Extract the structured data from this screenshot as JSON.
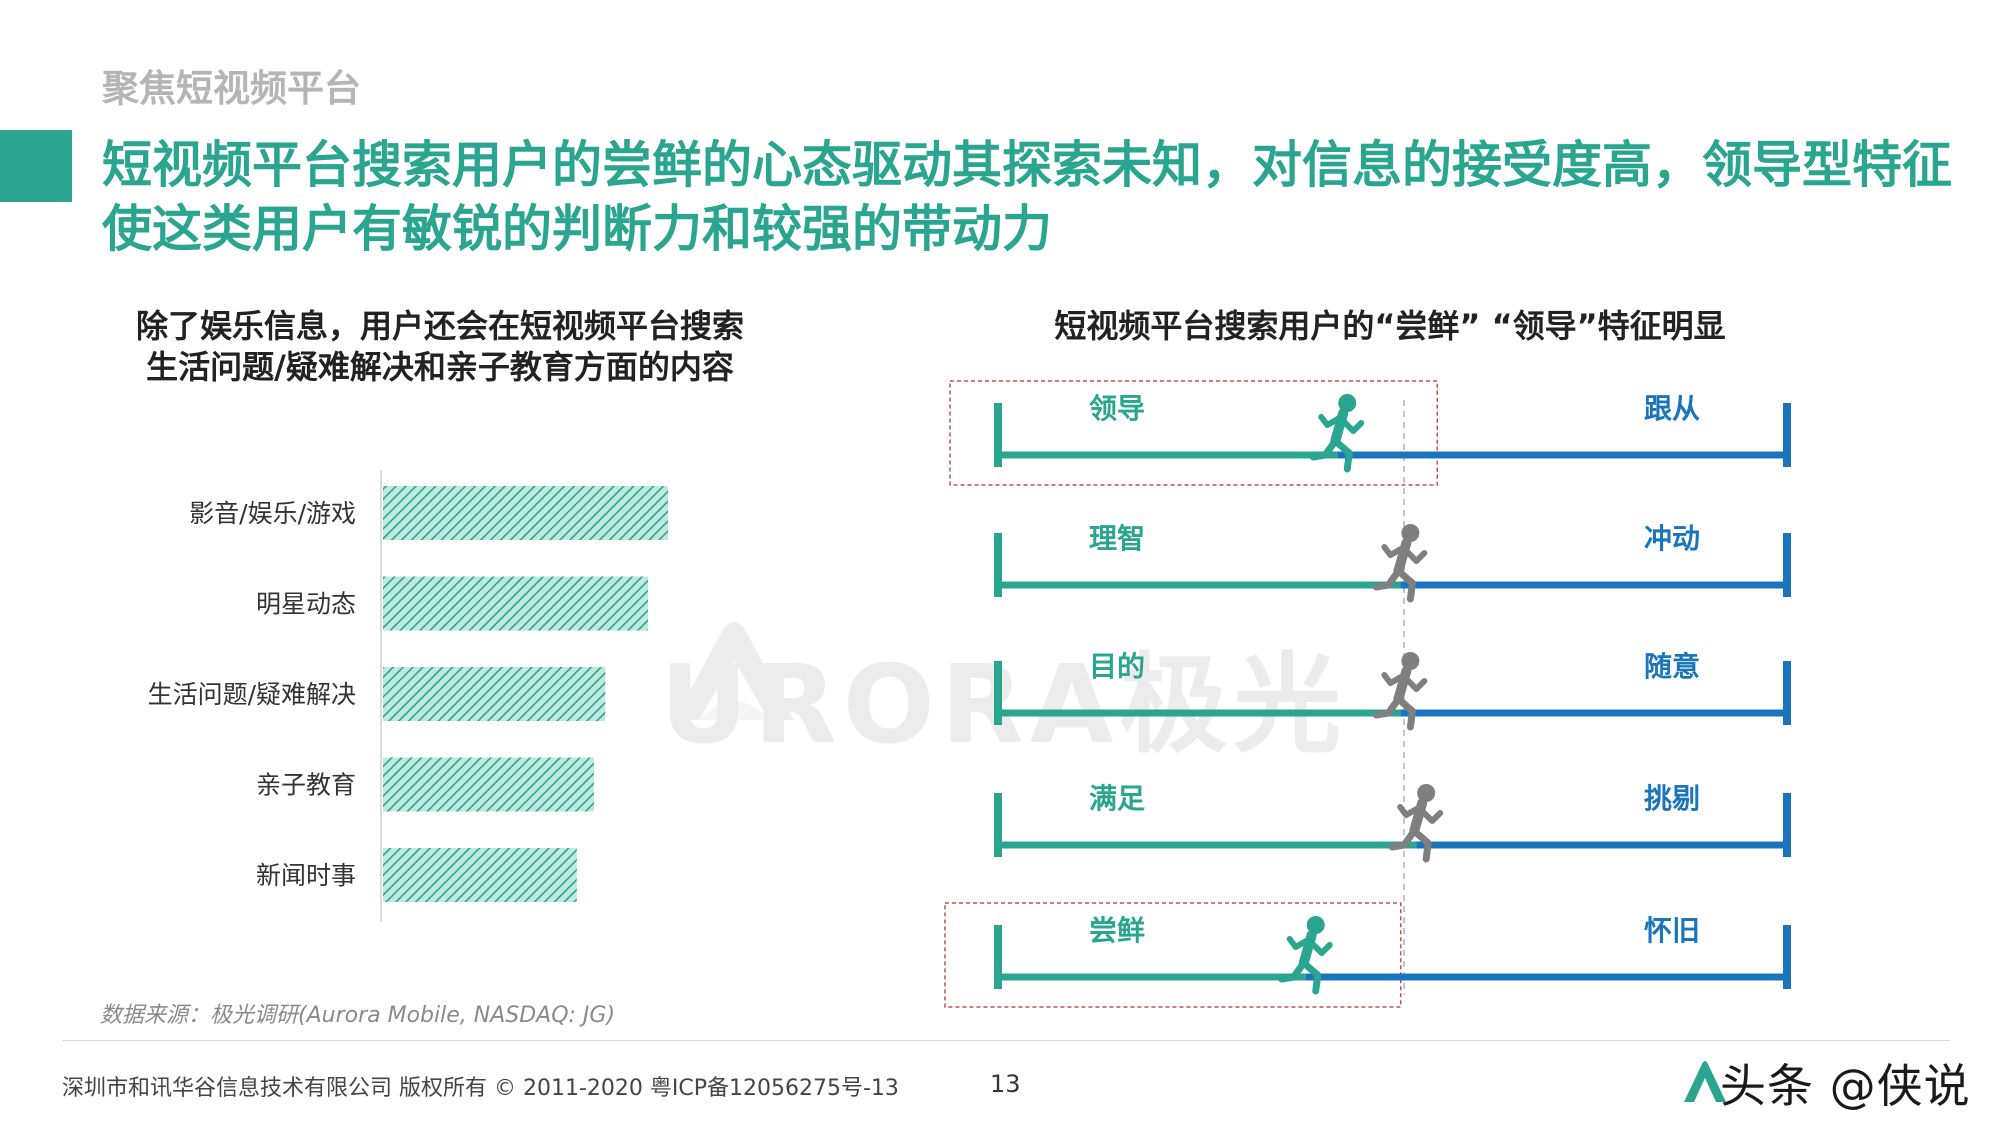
{
  "section_label": "聚焦短视频平台",
  "main_title": "短视频平台搜索用户的尝鲜的心态驱动其探索未知，对信息的接受度高，领导型特征使这类用户有敏锐的判断力和较强的带动力",
  "left_panel": {
    "subtitle_line1": "除了娱乐信息，用户还会在短视频平台搜索",
    "subtitle_line2": "生活问题/疑难解决和亲子教育方面的内容"
  },
  "right_panel": {
    "subtitle": "短视频平台搜索用户的“尝鲜”  “领导”特征明显"
  },
  "watermark": "URORA极光",
  "source_note": "数据来源：极光调研(Aurora Mobile, NASDAQ: JG)",
  "footer": {
    "copyright": "深圳市和讯华谷信息技术有限公司 版权所有 © 2011-2020 粤ICP备12056275号-13",
    "page_number": "13",
    "brand_mark": "头条 @侠说"
  },
  "colors": {
    "accent_green": "#2aa58f",
    "blue": "#1b75bc",
    "bar_hatch_dark": "#2aa58f",
    "bar_hatch_light": "#bfe8df",
    "figure_gray": "#7f7f7f",
    "highlight_border": "#c0504d"
  },
  "chart_data": [
    {
      "type": "bar",
      "orientation": "horizontal",
      "categories": [
        "影音/娱乐/游戏",
        "明星动态",
        "生活问题/疑难解决",
        "亲子教育",
        "新闻时事"
      ],
      "values": [
        100,
        93,
        78,
        74,
        68
      ],
      "xlim": [
        0,
        100
      ],
      "value_labels_shown": false,
      "grid": false,
      "bar_style": "hatched"
    },
    {
      "type": "scatter",
      "chart_style": "bipolar trait scales",
      "x_range": [
        0,
        1
      ],
      "traits": [
        {
          "left_label": "领导",
          "right_label": "跟从",
          "position": 0.43,
          "figure": "green",
          "highlighted": true
        },
        {
          "left_label": "理智",
          "right_label": "冲动",
          "position": 0.51,
          "figure": "gray",
          "highlighted": false
        },
        {
          "left_label": "目的",
          "right_label": "随意",
          "position": 0.51,
          "figure": "gray",
          "highlighted": false
        },
        {
          "left_label": "满足",
          "right_label": "挑剔",
          "position": 0.53,
          "figure": "gray",
          "highlighted": false
        },
        {
          "left_label": "尝鲜",
          "right_label": "怀旧",
          "position": 0.39,
          "figure": "green",
          "highlighted": true
        }
      ],
      "midline_at": 0.5
    }
  ]
}
